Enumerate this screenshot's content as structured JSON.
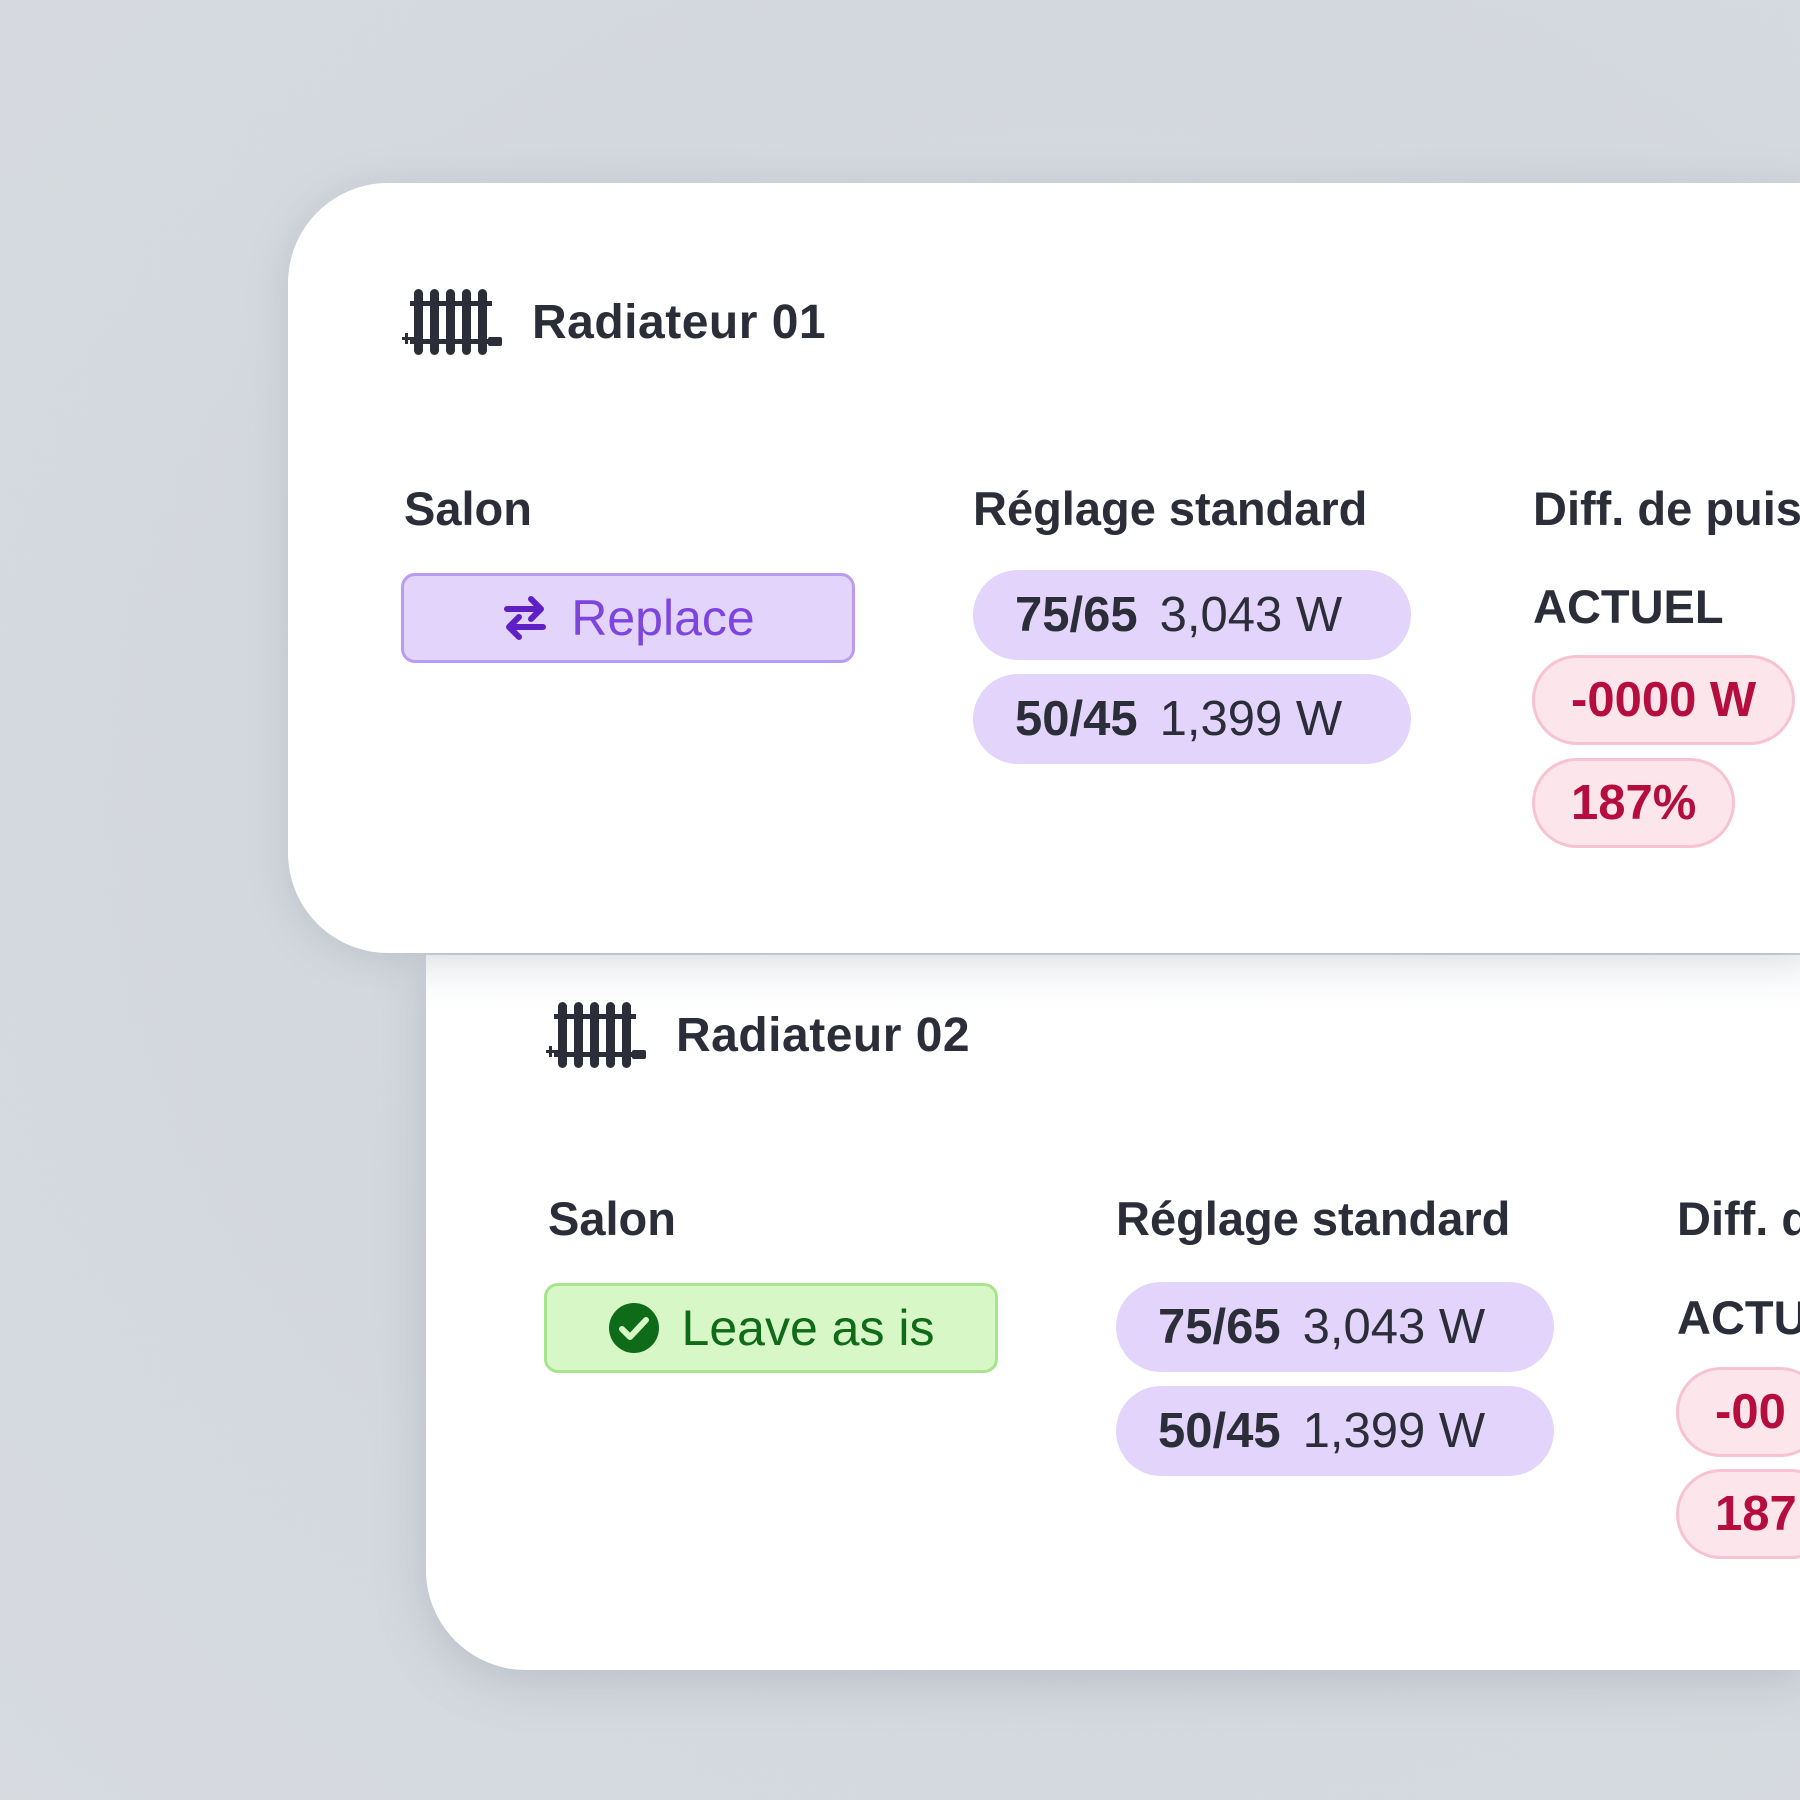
{
  "colors": {
    "background": "#d5d9df",
    "card": "#ffffff",
    "text": "#2b2d38",
    "pill_purple": "#e2d4fb",
    "replace_text": "#7e45de",
    "leave_bg": "#d8f7c6",
    "leave_text": "#0f6b18",
    "diff_bg": "#fde5ec",
    "diff_text": "#b40d3e"
  },
  "cards": [
    {
      "title": "Radiateur 01",
      "icon": "radiator-icon",
      "room_label": "Salon",
      "action": {
        "label": "Replace",
        "icon": "swap-arrows-icon",
        "type": "replace"
      },
      "setting_label": "Réglage standard",
      "settings": [
        {
          "temp": "75/65",
          "power": "3,043 W"
        },
        {
          "temp": "50/45",
          "power": "1,399 W"
        }
      ],
      "diff_label": "Diff. de puis",
      "diff_sublabel": "ACTUEL",
      "diff_values": [
        "-0000 W",
        "187%"
      ]
    },
    {
      "title": "Radiateur 02",
      "icon": "radiator-icon",
      "room_label": "Salon",
      "action": {
        "label": "Leave as is",
        "icon": "check-circle-icon",
        "type": "leave"
      },
      "setting_label": "Réglage standard",
      "settings": [
        {
          "temp": "75/65",
          "power": "3,043 W"
        },
        {
          "temp": "50/45",
          "power": "1,399 W"
        }
      ],
      "diff_label": "Diff. d",
      "diff_sublabel": "ACTU",
      "diff_values": [
        "-00",
        "187"
      ]
    }
  ]
}
